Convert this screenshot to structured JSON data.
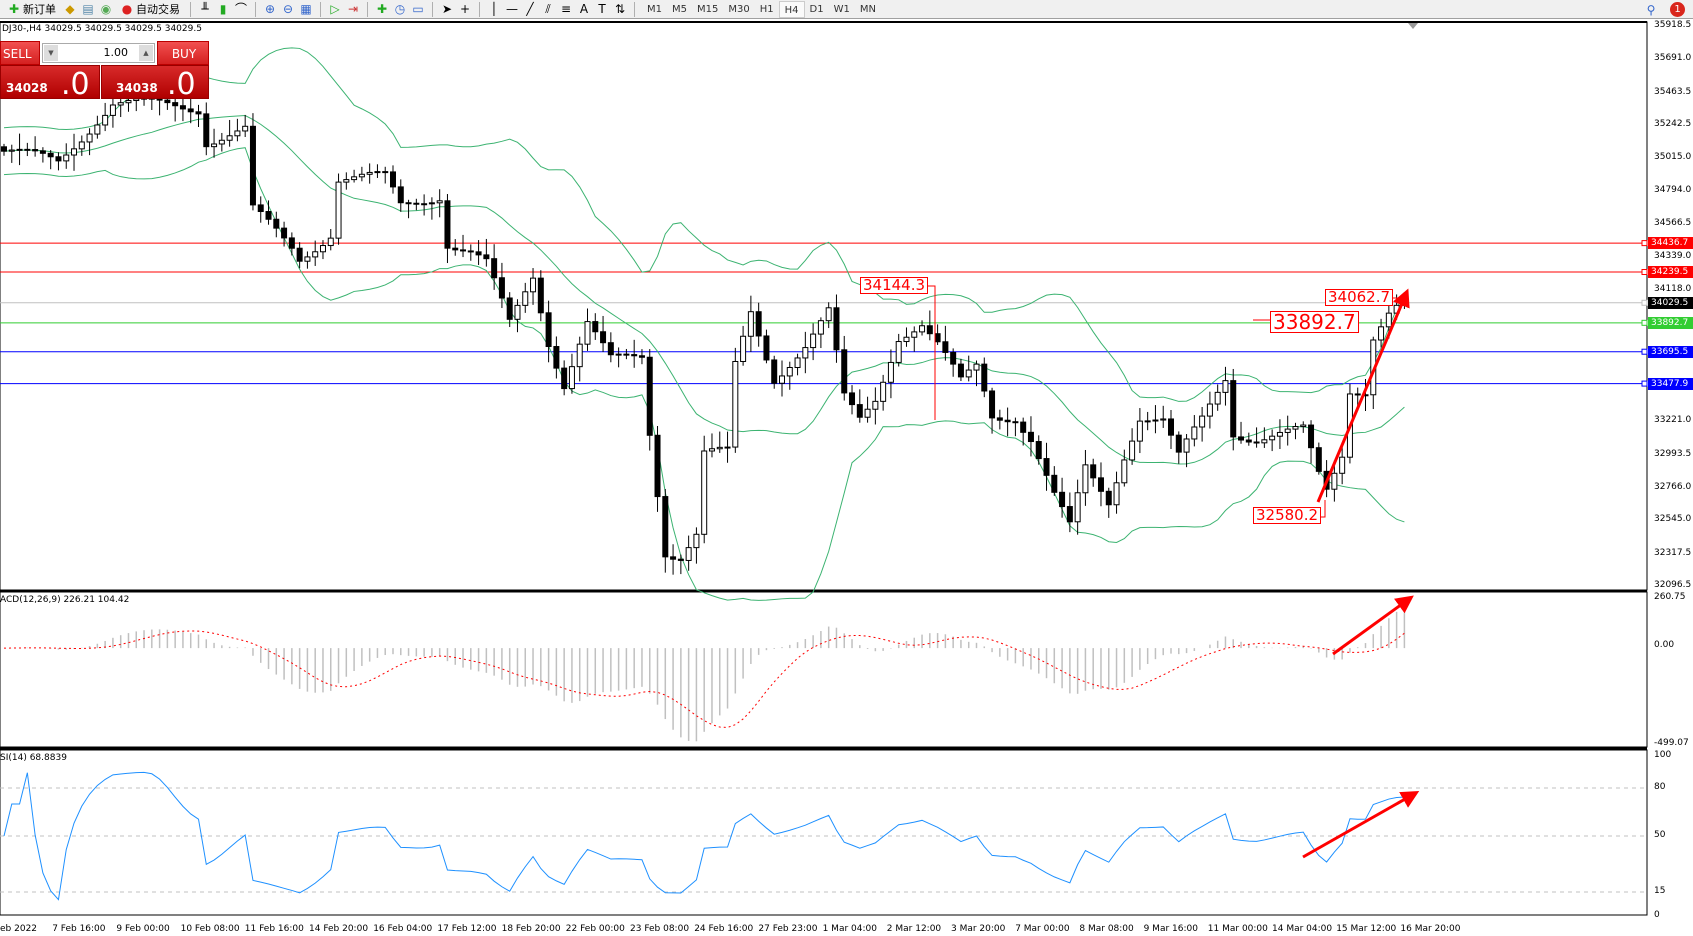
{
  "toolbar": {
    "new_order": "新订单",
    "auto_trading": "自动交易",
    "timeframes": [
      "M1",
      "M5",
      "M15",
      "M30",
      "H1",
      "H4",
      "D1",
      "W1",
      "MN"
    ],
    "active_timeframe": "H4",
    "notification_count": "1"
  },
  "chart": {
    "title": "DJ30-,H4  34029.5 34029.5 34029.5 34029.5",
    "trade_panel": {
      "sell_label": "SELL",
      "buy_label": "BUY",
      "lot": "1.00",
      "sell_price_main": "34028",
      "sell_price_big": ".0",
      "buy_price_main": "34038",
      "buy_price_big": ".0"
    },
    "price_axis": {
      "max": 35918.5,
      "min": 32096.5,
      "ticks": [
        "35918.5",
        "35691.0",
        "35463.5",
        "35242.5",
        "35015.0",
        "34794.0",
        "34566.5",
        "34339.0",
        "34118.0",
        "33221.0",
        "32993.5",
        "32766.0",
        "32545.0",
        "32317.5",
        "32096.5"
      ]
    },
    "hlines": [
      {
        "price": 34436.7,
        "label": "34436.7",
        "color": "#ff0000"
      },
      {
        "price": 34239.5,
        "label": "34239.5",
        "color": "#ff0000"
      },
      {
        "price": 34029.5,
        "label": "34029.5",
        "color": "#c0c0c0",
        "label_bg": "#000000"
      },
      {
        "price": 33892.7,
        "label": "33892.7",
        "color": "#32cd32"
      },
      {
        "price": 33695.5,
        "label": "33695.5",
        "color": "#0000ff"
      },
      {
        "price": 33477.9,
        "label": "33477.9",
        "color": "#0000ff"
      }
    ],
    "annotations": [
      "34144.3",
      "33892.7",
      "34062.7",
      "32580.2"
    ],
    "price_path": [
      [
        0,
        35064
      ],
      [
        7,
        34990
      ],
      [
        12,
        35285
      ],
      [
        14,
        35395
      ],
      [
        25,
        35360
      ],
      [
        26,
        35140
      ],
      [
        31,
        35210
      ],
      [
        32,
        34660
      ],
      [
        37,
        34400
      ],
      [
        38,
        34330
      ],
      [
        42,
        34510
      ],
      [
        43,
        34880
      ],
      [
        49,
        34880
      ],
      [
        51,
        34695
      ],
      [
        56,
        34770
      ],
      [
        57,
        34440
      ],
      [
        60,
        34365
      ],
      [
        62,
        34290
      ],
      [
        65,
        33886
      ],
      [
        68,
        34220
      ],
      [
        70,
        33775
      ],
      [
        72,
        33480
      ],
      [
        75,
        33886
      ],
      [
        78,
        33630
      ],
      [
        82,
        33665
      ],
      [
        83,
        33150
      ],
      [
        85,
        32340
      ],
      [
        87,
        32305
      ],
      [
        89,
        32450
      ],
      [
        90,
        33000
      ],
      [
        93,
        33000
      ],
      [
        94,
        33590
      ],
      [
        96,
        33960
      ],
      [
        99,
        33520
      ],
      [
        103,
        33740
      ],
      [
        106,
        33960
      ],
      [
        108,
        33370
      ],
      [
        110,
        33225
      ],
      [
        112,
        33370
      ],
      [
        115,
        33810
      ],
      [
        118,
        33886
      ],
      [
        120,
        33740
      ],
      [
        123,
        33480
      ],
      [
        125,
        33590
      ],
      [
        127,
        33260
      ],
      [
        130,
        33260
      ],
      [
        132,
        33110
      ],
      [
        135,
        32710
      ],
      [
        137,
        32490
      ],
      [
        139,
        32890
      ],
      [
        142,
        32670
      ],
      [
        144,
        33000
      ],
      [
        146,
        33260
      ],
      [
        149,
        33225
      ],
      [
        151,
        32970
      ],
      [
        154,
        33225
      ],
      [
        157,
        33520
      ],
      [
        158,
        33150
      ],
      [
        161,
        33110
      ],
      [
        167,
        33150
      ],
      [
        169,
        32850
      ],
      [
        170,
        32745
      ],
      [
        172,
        33000
      ],
      [
        173,
        33445
      ],
      [
        175,
        33445
      ],
      [
        176,
        33810
      ],
      [
        178,
        33960
      ],
      [
        180,
        34029.5
      ]
    ],
    "colors": {
      "bands": "#3cb371",
      "signal": "#ff0000",
      "histogram": "#c0c0c0",
      "rsi": "#1e90ff",
      "arrow": "#ff0000"
    }
  },
  "macd": {
    "label": "ACD(12,26,9) 226.21 104.42",
    "max": 260.75,
    "min": -499.07,
    "ticks": [
      "260.75",
      "0.00",
      "-499.07"
    ]
  },
  "rsi": {
    "label": "SI(14) 68.8839",
    "ticks": [
      "100",
      "80",
      "50",
      "15",
      "0"
    ],
    "levels": [
      80,
      50,
      15
    ]
  },
  "time_axis": [
    "eb 2022",
    "7 Feb 16:00",
    "9 Feb 00:00",
    "10 Feb 08:00",
    "11 Feb 16:00",
    "14 Feb 20:00",
    "16 Feb 04:00",
    "17 Feb 12:00",
    "18 Feb 20:00",
    "22 Feb 00:00",
    "23 Feb 08:00",
    "24 Feb 16:00",
    "27 Feb 23:00",
    "1 Mar 04:00",
    "2 Mar 12:00",
    "3 Mar 20:00",
    "7 Mar 00:00",
    "8 Mar 08:00",
    "9 Mar 16:00",
    "11 Mar 00:00",
    "14 Mar 04:00",
    "15 Mar 12:00",
    "16 Mar 20:00"
  ]
}
